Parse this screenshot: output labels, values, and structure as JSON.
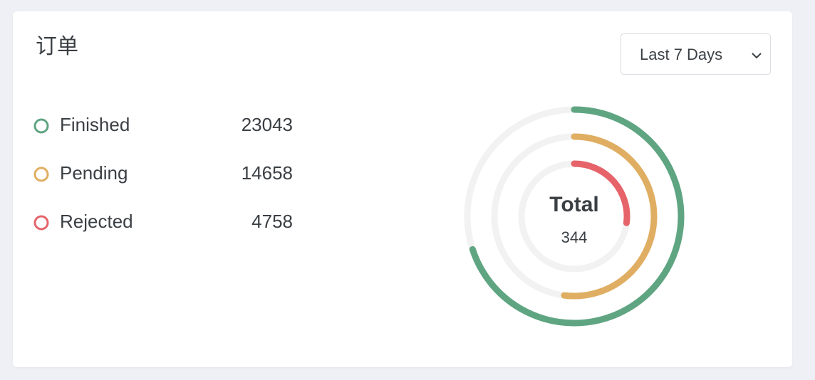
{
  "header": {
    "title": "订单",
    "filter": "Last 7 Days"
  },
  "legend": [
    {
      "name": "Finished",
      "count": 23043,
      "color": "#5fa582"
    },
    {
      "name": "Pending",
      "count": 14658,
      "color": "#e0ae62"
    },
    {
      "name": "Rejected",
      "count": 4758,
      "color": "#e6636a"
    }
  ],
  "chart_data": {
    "type": "radialBar",
    "ylim": [
      0,
      100
    ],
    "track_color": "#f2f2f2",
    "center_label": "Total",
    "center_value": 344,
    "series": [
      {
        "color": "#5fa582",
        "values": [
          70
        ]
      },
      {
        "color": "#e0ae62",
        "values": [
          52
        ]
      },
      {
        "color": "#e6636a",
        "values": [
          27
        ]
      }
    ]
  }
}
